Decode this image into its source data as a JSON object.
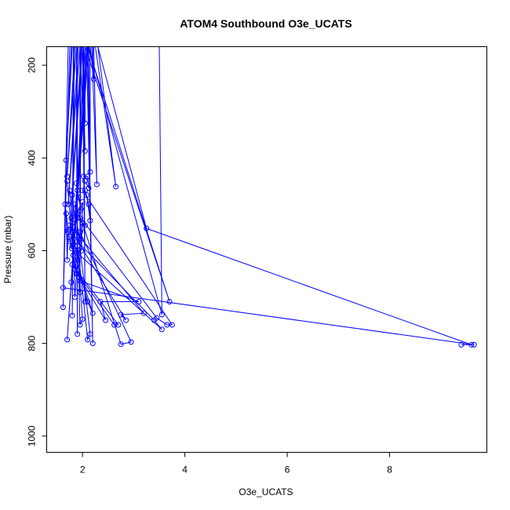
{
  "chart_data": {
    "type": "line",
    "title": "ATOM4 Southbound O3e_UCATS",
    "xlabel": "O3e_UCATS",
    "ylabel": "Pressure (mbar)",
    "xlim": [
      1.3,
      9.9
    ],
    "ylim": [
      1035,
      160
    ],
    "y_reversed": true,
    "grid": false,
    "legend": "none",
    "color": "#0000ff",
    "x_ticks": [
      2,
      4,
      6,
      8
    ],
    "y_ticks": [
      200,
      400,
      600,
      800,
      1000
    ],
    "series": [
      {
        "values": [
          [
            1.72,
            160
          ],
          [
            1.62,
            722
          ],
          [
            1.75,
            160
          ]
        ]
      },
      {
        "values": [
          [
            1.78,
            160
          ],
          [
            1.68,
            405
          ],
          [
            1.8,
            160
          ]
        ]
      },
      {
        "values": [
          [
            1.85,
            160
          ],
          [
            1.7,
            440
          ],
          [
            1.88,
            160
          ]
        ]
      },
      {
        "values": [
          [
            1.92,
            160
          ],
          [
            1.72,
            500
          ],
          [
            1.95,
            160
          ]
        ]
      },
      {
        "values": [
          [
            1.98,
            160
          ],
          [
            1.75,
            555
          ],
          [
            2.0,
            160
          ]
        ]
      },
      {
        "values": [
          [
            2.05,
            160
          ],
          [
            1.78,
            668
          ],
          [
            2.08,
            160
          ]
        ]
      },
      {
        "values": [
          [
            2.1,
            160
          ],
          [
            1.7,
            792
          ],
          [
            2.12,
            160
          ]
        ]
      },
      {
        "values": [
          [
            1.82,
            160
          ],
          [
            1.8,
            740
          ],
          [
            1.84,
            160
          ]
        ]
      },
      {
        "values": [
          [
            1.88,
            160
          ],
          [
            1.9,
            780
          ],
          [
            1.9,
            160
          ]
        ]
      },
      {
        "values": [
          [
            1.95,
            160
          ],
          [
            1.95,
            690
          ],
          [
            1.97,
            160
          ]
        ]
      },
      {
        "values": [
          [
            2.0,
            160
          ],
          [
            2.05,
            710
          ],
          [
            2.02,
            160
          ]
        ]
      },
      {
        "values": [
          [
            2.08,
            160
          ],
          [
            2.2,
            800
          ],
          [
            2.1,
            160
          ]
        ]
      },
      {
        "values": [
          [
            2.15,
            160
          ],
          [
            2.22,
            230
          ],
          [
            2.2,
            160
          ]
        ]
      },
      {
        "values": [
          [
            2.02,
            160
          ],
          [
            2.05,
            325
          ],
          [
            2.05,
            160
          ]
        ]
      },
      {
        "values": [
          [
            1.95,
            160
          ],
          [
            2.05,
            385
          ],
          [
            2.0,
            160
          ]
        ]
      },
      {
        "values": [
          [
            2.12,
            160
          ],
          [
            2.15,
            430
          ],
          [
            2.15,
            160
          ]
        ]
      },
      {
        "values": [
          [
            2.18,
            160
          ],
          [
            2.28,
            457
          ],
          [
            2.22,
            160
          ]
        ]
      },
      {
        "values": [
          [
            2.25,
            160
          ],
          [
            2.65,
            462
          ],
          [
            2.3,
            160
          ]
        ]
      },
      {
        "values": [
          [
            2.3,
            160
          ],
          [
            3.25,
            552
          ],
          [
            9.6,
            803
          ],
          [
            9.4,
            803
          ]
        ]
      },
      {
        "values": [
          [
            2.12,
            160
          ],
          [
            3.55,
            738
          ],
          [
            3.5,
            160
          ]
        ]
      },
      {
        "values": [
          [
            2.05,
            160
          ],
          [
            3.7,
            710
          ],
          [
            2.1,
            160
          ]
        ]
      },
      {
        "values": [
          [
            1.9,
            520
          ],
          [
            3.45,
            745
          ],
          [
            3.65,
            760
          ],
          [
            3.75,
            760
          ],
          [
            2.0,
            470
          ]
        ]
      },
      {
        "values": [
          [
            1.85,
            600
          ],
          [
            3.55,
            770
          ],
          [
            3.4,
            750
          ],
          [
            1.9,
            580
          ]
        ]
      },
      {
        "values": [
          [
            1.75,
            545
          ],
          [
            3.2,
            735
          ],
          [
            2.75,
            738
          ],
          [
            2.85,
            750
          ],
          [
            1.8,
            560
          ]
        ]
      },
      {
        "values": [
          [
            1.95,
            560
          ],
          [
            2.95,
            797
          ],
          [
            2.75,
            802
          ],
          [
            2.0,
            540
          ]
        ]
      },
      {
        "values": [
          [
            1.8,
            630
          ],
          [
            2.7,
            760
          ],
          [
            2.62,
            760
          ],
          [
            1.85,
            640
          ]
        ]
      },
      {
        "values": [
          [
            1.9,
            650
          ],
          [
            2.45,
            750
          ],
          [
            2.35,
            710
          ],
          [
            3.1,
            710
          ],
          [
            1.95,
            665
          ]
        ]
      },
      {
        "values": [
          [
            1.62,
            680
          ],
          [
            9.65,
            803
          ]
        ]
      },
      {
        "values": [
          [
            1.75,
            575
          ],
          [
            2.2,
            735
          ],
          [
            2.1,
            710
          ],
          [
            1.8,
            590
          ]
        ]
      },
      {
        "values": [
          [
            1.8,
            480
          ],
          [
            2.1,
            792
          ],
          [
            2.15,
            780
          ],
          [
            1.85,
            500
          ]
        ]
      },
      {
        "values": [
          [
            1.9,
            590
          ],
          [
            2.0,
            748
          ],
          [
            1.95,
            760
          ],
          [
            1.92,
            600
          ]
        ]
      },
      {
        "values": [
          [
            1.7,
            450
          ],
          [
            1.82,
            610
          ],
          [
            1.88,
            650
          ],
          [
            1.75,
            470
          ]
        ]
      },
      {
        "values": [
          [
            1.85,
            520
          ],
          [
            1.95,
            575
          ],
          [
            2.05,
            545
          ],
          [
            1.9,
            530
          ]
        ]
      },
      {
        "values": [
          [
            2.05,
            470
          ],
          [
            2.12,
            500
          ],
          [
            2.15,
            535
          ],
          [
            2.08,
            480
          ]
        ]
      },
      {
        "values": [
          [
            1.95,
            515
          ],
          [
            2.0,
            495
          ],
          [
            1.98,
            600
          ],
          [
            1.96,
            530
          ]
        ]
      },
      {
        "values": [
          [
            1.78,
            530
          ],
          [
            1.9,
            620
          ],
          [
            1.85,
            700
          ],
          [
            1.8,
            540
          ]
        ]
      },
      {
        "values": [
          [
            1.72,
            560
          ],
          [
            1.76,
            580
          ],
          [
            1.79,
            595
          ],
          [
            1.74,
            570
          ]
        ]
      },
      {
        "values": [
          [
            2.02,
            440
          ],
          [
            2.1,
            440
          ],
          [
            2.12,
            465
          ],
          [
            2.05,
            450
          ]
        ]
      },
      {
        "values": [
          [
            1.88,
            455
          ],
          [
            1.92,
            485
          ],
          [
            1.97,
            510
          ],
          [
            1.9,
            470
          ]
        ]
      },
      {
        "values": [
          [
            1.66,
            500
          ],
          [
            1.72,
            555
          ],
          [
            1.7,
            620
          ],
          [
            1.68,
            520
          ]
        ]
      }
    ]
  }
}
